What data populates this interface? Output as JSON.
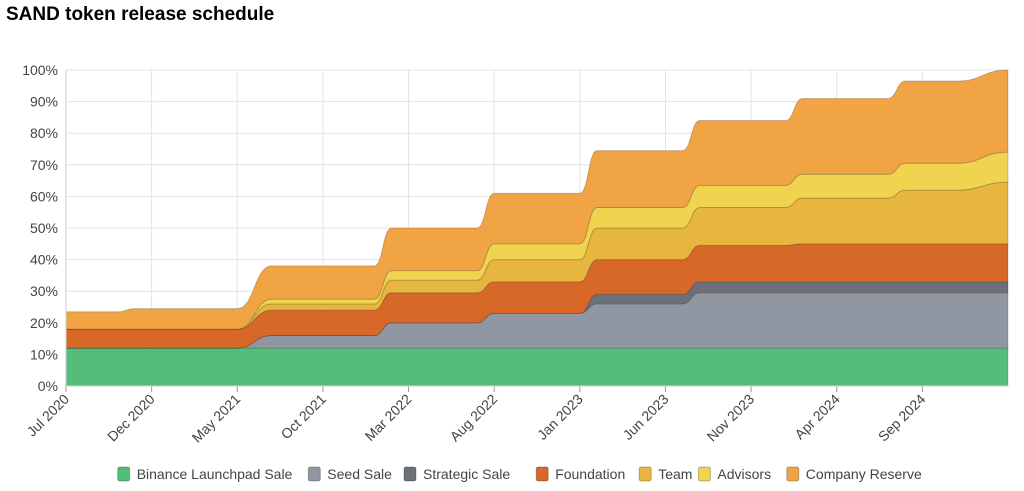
{
  "title": "SAND token release schedule",
  "chart_data": {
    "type": "area",
    "stacked": true,
    "title": "SAND token release schedule",
    "xlabel": "",
    "ylabel": "",
    "ylim": [
      0,
      100
    ],
    "x_range": [
      "2020-07",
      "2025-02"
    ],
    "x_ticks": [
      "Jul 2020",
      "Dec 2020",
      "May 2021",
      "Oct 2021",
      "Mar 2022",
      "Aug 2022",
      "Jan 2023",
      "Jun 2023",
      "Nov 2023",
      "Apr 2024",
      "Sep 2024"
    ],
    "x_tick_dates": [
      "2020-07",
      "2020-12",
      "2021-05",
      "2021-10",
      "2022-03",
      "2022-08",
      "2023-01",
      "2023-06",
      "2023-11",
      "2024-04",
      "2024-09"
    ],
    "y_ticks": [
      "0%",
      "10%",
      "20%",
      "30%",
      "40%",
      "50%",
      "60%",
      "70%",
      "80%",
      "90%",
      "100%"
    ],
    "grid": true,
    "legend_position": "bottom",
    "x": [
      "2020-07",
      "2020-10",
      "2020-11",
      "2021-04",
      "2021-05",
      "2021-07",
      "2021-08",
      "2021-10",
      "2021-11",
      "2022-01",
      "2022-02",
      "2022-04",
      "2022-05",
      "2022-07",
      "2022-08",
      "2022-10",
      "2022-11",
      "2023-01",
      "2023-02",
      "2023-04",
      "2023-05",
      "2023-07",
      "2023-08",
      "2023-10",
      "2023-11",
      "2024-01",
      "2024-02",
      "2024-04",
      "2024-05",
      "2024-07",
      "2024-08",
      "2024-10",
      "2024-11",
      "2025-02"
    ],
    "series": [
      {
        "name": "Binance Launchpad Sale",
        "color": "#55bd7a",
        "values": [
          12,
          12,
          12,
          12,
          12,
          12,
          12,
          12,
          12,
          12,
          12,
          12,
          12,
          12,
          12,
          12,
          12,
          12,
          12,
          12,
          12,
          12,
          12,
          12,
          12,
          12,
          12,
          12,
          12,
          12,
          12,
          12,
          12,
          12
        ]
      },
      {
        "name": "Seed Sale",
        "color": "#9197a2",
        "values": [
          0,
          0,
          0,
          0,
          0,
          4,
          4,
          4,
          4,
          4,
          8,
          8,
          8,
          8,
          11,
          11,
          11,
          11,
          14,
          14,
          14,
          14,
          17.5,
          17.5,
          17.5,
          17.5,
          17.5,
          17.5,
          17.5,
          17.5,
          17.5,
          17.5,
          17.5,
          17.5
        ]
      },
      {
        "name": "Strategic Sale",
        "color": "#6b7079",
        "values": [
          0,
          0,
          0,
          0,
          0,
          0,
          0,
          0,
          0,
          0,
          0,
          0,
          0,
          0,
          0,
          0,
          0,
          0,
          3,
          3,
          3,
          3,
          3.5,
          3.5,
          3.5,
          3.5,
          3.5,
          3.5,
          3.5,
          3.5,
          3.5,
          3.5,
          3.5,
          3.5
        ]
      },
      {
        "name": "Foundation",
        "color": "#d86828",
        "values": [
          6,
          6,
          6,
          6,
          6,
          8,
          8,
          8,
          8,
          8,
          9.5,
          9.5,
          9.5,
          9.5,
          10,
          10,
          10,
          10,
          11,
          11,
          11,
          11,
          11.5,
          11.5,
          11.5,
          11.5,
          12,
          12,
          12,
          12,
          12,
          12,
          12,
          12
        ]
      },
      {
        "name": "Team",
        "color": "#e6b63e",
        "values": [
          0,
          0,
          0,
          0,
          0,
          2,
          2,
          2,
          2,
          2,
          4,
          4,
          4,
          4,
          7,
          7,
          7,
          7,
          10,
          10,
          10,
          10,
          12,
          12,
          12,
          12,
          14.5,
          14.5,
          14.5,
          14.5,
          17,
          17,
          17,
          19.5
        ]
      },
      {
        "name": "Advisors",
        "color": "#f0d34e",
        "values": [
          0,
          0,
          0,
          0,
          0,
          1.5,
          1.5,
          1.5,
          1.5,
          1.5,
          3,
          3,
          3,
          3,
          5,
          5,
          5,
          5,
          6.5,
          6.5,
          6.5,
          6.5,
          7,
          7,
          7,
          7,
          7.5,
          7.5,
          7.5,
          7.5,
          8.5,
          8.5,
          8.5,
          9.5
        ]
      },
      {
        "name": "Company Reserve",
        "color": "#f0a443",
        "values": [
          5.5,
          5.5,
          6.5,
          6.5,
          6.5,
          10.5,
          10.5,
          10.5,
          10.5,
          10.5,
          13.5,
          13.5,
          13.5,
          13.5,
          16,
          16,
          16,
          16,
          18,
          18,
          18,
          18,
          20.5,
          20.5,
          20.5,
          20.5,
          24,
          24,
          24,
          24,
          26,
          26,
          26,
          26
        ]
      }
    ]
  }
}
